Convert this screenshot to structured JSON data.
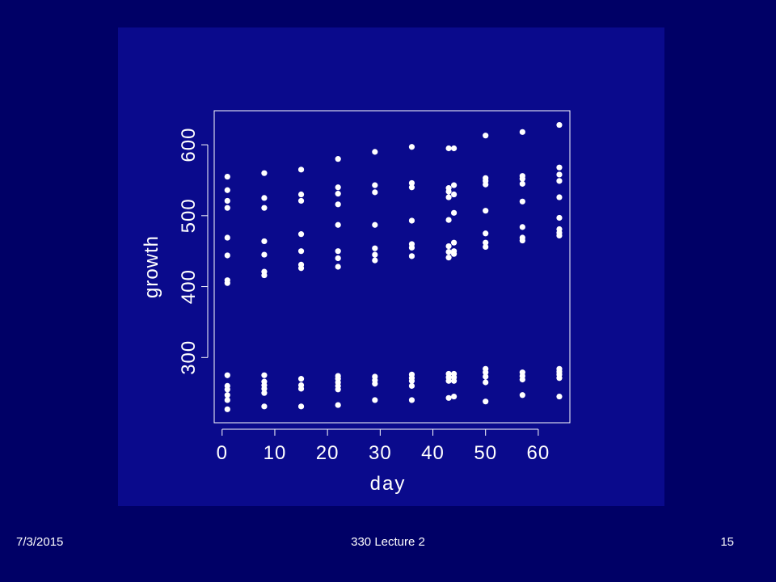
{
  "footer": {
    "date": "7/3/2015",
    "title": "330 Lecture 2",
    "page": "15"
  },
  "colors": {
    "background": "#000066",
    "panel": "#0a0a8c",
    "foreground": "#ffffff"
  },
  "chart_data": {
    "type": "scatter",
    "title": "",
    "xlabel": "day",
    "ylabel": "growth",
    "xlim": [
      -1.5,
      66
    ],
    "ylim": [
      208,
      648
    ],
    "xticks": [
      0,
      10,
      20,
      30,
      40,
      50,
      60
    ],
    "yticks": [
      300,
      400,
      500,
      600
    ],
    "grid": false,
    "series": [
      {
        "points": [
          [
            1,
            555
          ],
          [
            1,
            536
          ],
          [
            1,
            521
          ],
          [
            1,
            511
          ],
          [
            1,
            469
          ],
          [
            1,
            444
          ],
          [
            1,
            409
          ],
          [
            1,
            405
          ],
          [
            1,
            275
          ],
          [
            1,
            260
          ],
          [
            1,
            255
          ],
          [
            1,
            247
          ],
          [
            1,
            240
          ],
          [
            1,
            227
          ],
          [
            8,
            560
          ],
          [
            8,
            525
          ],
          [
            8,
            511
          ],
          [
            8,
            464
          ],
          [
            8,
            445
          ],
          [
            8,
            421
          ],
          [
            8,
            416
          ],
          [
            8,
            275
          ],
          [
            8,
            266
          ],
          [
            8,
            261
          ],
          [
            8,
            256
          ],
          [
            8,
            250
          ],
          [
            8,
            231
          ],
          [
            15,
            565
          ],
          [
            15,
            530
          ],
          [
            15,
            521
          ],
          [
            15,
            474
          ],
          [
            15,
            450
          ],
          [
            15,
            431
          ],
          [
            15,
            426
          ],
          [
            15,
            270
          ],
          [
            15,
            261
          ],
          [
            15,
            256
          ],
          [
            15,
            231
          ],
          [
            22,
            580
          ],
          [
            22,
            540
          ],
          [
            22,
            531
          ],
          [
            22,
            516
          ],
          [
            22,
            487
          ],
          [
            22,
            450
          ],
          [
            22,
            440
          ],
          [
            22,
            428
          ],
          [
            22,
            274
          ],
          [
            22,
            270
          ],
          [
            22,
            265
          ],
          [
            22,
            260
          ],
          [
            22,
            255
          ],
          [
            22,
            233
          ],
          [
            29,
            590
          ],
          [
            29,
            543
          ],
          [
            29,
            533
          ],
          [
            29,
            487
          ],
          [
            29,
            454
          ],
          [
            29,
            445
          ],
          [
            29,
            437
          ],
          [
            29,
            273
          ],
          [
            29,
            268
          ],
          [
            29,
            263
          ],
          [
            29,
            240
          ],
          [
            36,
            597
          ],
          [
            36,
            546
          ],
          [
            36,
            540
          ],
          [
            36,
            493
          ],
          [
            36,
            460
          ],
          [
            36,
            455
          ],
          [
            36,
            443
          ],
          [
            36,
            276
          ],
          [
            36,
            271
          ],
          [
            36,
            267
          ],
          [
            36,
            260
          ],
          [
            36,
            240
          ],
          [
            43,
            595
          ],
          [
            43,
            539
          ],
          [
            43,
            534
          ],
          [
            43,
            526
          ],
          [
            43,
            494
          ],
          [
            43,
            457
          ],
          [
            43,
            449
          ],
          [
            43,
            441
          ],
          [
            43,
            277
          ],
          [
            43,
            272
          ],
          [
            43,
            267
          ],
          [
            43,
            243
          ],
          [
            44,
            595
          ],
          [
            44,
            543
          ],
          [
            44,
            530
          ],
          [
            44,
            504
          ],
          [
            44,
            462
          ],
          [
            44,
            450
          ],
          [
            44,
            446
          ],
          [
            44,
            277
          ],
          [
            44,
            272
          ],
          [
            44,
            267
          ],
          [
            44,
            245
          ],
          [
            50,
            613
          ],
          [
            50,
            553
          ],
          [
            50,
            549
          ],
          [
            50,
            544
          ],
          [
            50,
            507
          ],
          [
            50,
            475
          ],
          [
            50,
            462
          ],
          [
            50,
            456
          ],
          [
            50,
            284
          ],
          [
            50,
            279
          ],
          [
            50,
            273
          ],
          [
            50,
            265
          ],
          [
            50,
            238
          ],
          [
            57,
            618
          ],
          [
            57,
            556
          ],
          [
            57,
            552
          ],
          [
            57,
            545
          ],
          [
            57,
            520
          ],
          [
            57,
            484
          ],
          [
            57,
            469
          ],
          [
            57,
            465
          ],
          [
            57,
            279
          ],
          [
            57,
            274
          ],
          [
            57,
            269
          ],
          [
            57,
            247
          ],
          [
            64,
            628
          ],
          [
            64,
            568
          ],
          [
            64,
            558
          ],
          [
            64,
            549
          ],
          [
            64,
            526
          ],
          [
            64,
            497
          ],
          [
            64,
            481
          ],
          [
            64,
            476
          ],
          [
            64,
            472
          ],
          [
            64,
            284
          ],
          [
            64,
            280
          ],
          [
            64,
            276
          ],
          [
            64,
            271
          ],
          [
            64,
            245
          ]
        ]
      }
    ]
  }
}
